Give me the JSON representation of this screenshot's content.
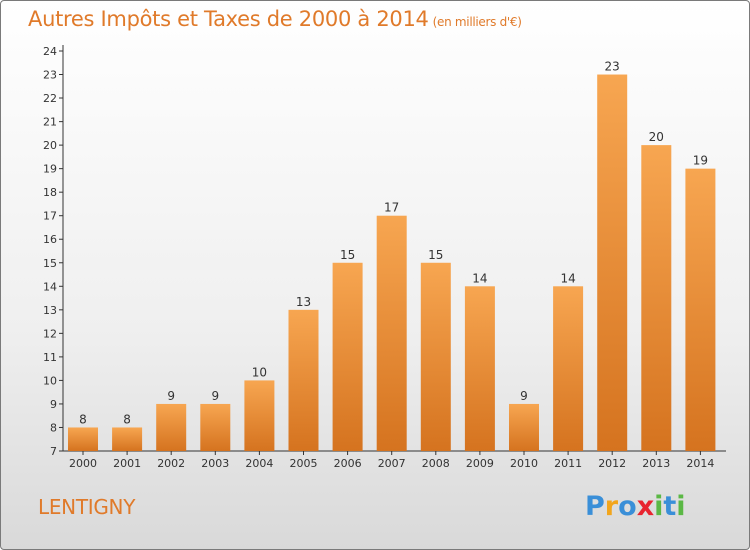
{
  "title": "Autres Impôts et Taxes de 2000 à 2014",
  "title_unit": "(en milliers d'€)",
  "commune": "LENTIGNY",
  "logo": {
    "letters": [
      "P",
      "r",
      "o",
      "x",
      "i",
      "t",
      "i"
    ],
    "colors": [
      "#3a8fd8",
      "#f2a51c",
      "#3a8fd8",
      "#e8242f",
      "#5bb845",
      "#3a8fd8",
      "#5bb845"
    ]
  },
  "colors": {
    "title": "#e07a2a",
    "bar_top": "#f7a651",
    "bar_bottom": "#d5731f",
    "axis": "#333333"
  },
  "chart_data": {
    "type": "bar",
    "title": "Autres Impôts et Taxes de 2000 à 2014",
    "subtitle": "(en milliers d'€)",
    "xlabel": "",
    "ylabel": "",
    "categories": [
      "2000",
      "2001",
      "2002",
      "2003",
      "2004",
      "2005",
      "2006",
      "2007",
      "2008",
      "2009",
      "2010",
      "2011",
      "2012",
      "2013",
      "2014"
    ],
    "values": [
      8,
      8,
      9,
      9,
      10,
      13,
      15,
      17,
      15,
      14,
      9,
      14,
      23,
      20,
      19
    ],
    "ylim": [
      7,
      24
    ],
    "yticks": [
      7,
      8,
      9,
      10,
      11,
      12,
      13,
      14,
      15,
      16,
      17,
      18,
      19,
      20,
      21,
      22,
      23,
      24
    ],
    "grid": false,
    "data_labels": true
  }
}
